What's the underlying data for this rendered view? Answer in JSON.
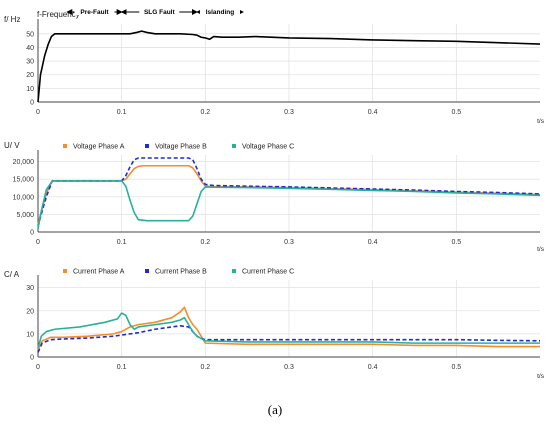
{
  "caption": "(a)",
  "chart_data": [
    {
      "type": "line",
      "ylabel": "f/ Hz",
      "xlabel": "t/s",
      "xlim": [
        0,
        0.6
      ],
      "ylim": [
        0,
        55
      ],
      "x_ticks": [
        "0",
        "0.1",
        "0.2",
        "0.3",
        "0.4",
        "0.5"
      ],
      "y_ticks": [
        "0",
        "10",
        "20",
        "30",
        "40",
        "50"
      ],
      "grid": true,
      "legend": "top-left",
      "series": [
        {
          "name": "f-Frequency",
          "color": "#000000",
          "x": [
            0,
            0.003,
            0.008,
            0.012,
            0.016,
            0.02,
            0.05,
            0.08,
            0.1,
            0.11,
            0.118,
            0.124,
            0.13,
            0.14,
            0.15,
            0.17,
            0.185,
            0.19,
            0.195,
            0.2,
            0.205,
            0.21,
            0.22,
            0.24,
            0.26,
            0.3,
            0.35,
            0.4,
            0.45,
            0.5,
            0.55,
            0.6
          ],
          "values": [
            0,
            20,
            34,
            42,
            48,
            50,
            50,
            50,
            50,
            50,
            51,
            52,
            51,
            50,
            50,
            50,
            49.5,
            49,
            47.5,
            47,
            46,
            48,
            47.5,
            47.5,
            48,
            47,
            46.5,
            45.5,
            45,
            44.5,
            43.5,
            42.5
          ]
        }
      ],
      "annotations": [
        {
          "text": "Pre-Fault",
          "x_start": 0.035,
          "x_end": 0.1
        },
        {
          "text": "SLG Fault",
          "x_start": 0.1,
          "x_end": 0.19
        },
        {
          "text": "Islanding",
          "x_start": 0.19,
          "x_end": 0.245
        }
      ]
    },
    {
      "type": "line",
      "ylabel": "U/ V",
      "xlabel": "t/s",
      "xlim": [
        0,
        0.6
      ],
      "ylim": [
        0,
        21000
      ],
      "x_ticks": [
        "0",
        "0.1",
        "0.2",
        "0.3",
        "0.4",
        "0.5"
      ],
      "y_ticks": [
        "0",
        "5,000",
        "10,000",
        "15,000",
        "20,000"
      ],
      "grid": true,
      "legend": "top",
      "series": [
        {
          "name": "Voltage Phase A",
          "color": "#f28e2b",
          "dash": "solid",
          "x": [
            0,
            0.003,
            0.01,
            0.017,
            0.1,
            0.105,
            0.11,
            0.115,
            0.12,
            0.125,
            0.18,
            0.185,
            0.19,
            0.195,
            0.2,
            0.21,
            0.25,
            0.3,
            0.35,
            0.4,
            0.45,
            0.5,
            0.55,
            0.6
          ],
          "values": [
            2000,
            5000,
            11000,
            14500,
            14500,
            15000,
            16500,
            18000,
            18600,
            18800,
            18800,
            18200,
            16500,
            14500,
            13000,
            12900,
            12800,
            12600,
            12300,
            12000,
            11700,
            11300,
            11000,
            10600
          ]
        },
        {
          "name": "Voltage Phase B",
          "color": "#1f2bd4",
          "dash": "dashed",
          "x": [
            0,
            0.005,
            0.01,
            0.017,
            0.1,
            0.105,
            0.11,
            0.115,
            0.12,
            0.125,
            0.18,
            0.185,
            0.19,
            0.195,
            0.2,
            0.21,
            0.25,
            0.3,
            0.35,
            0.4,
            0.45,
            0.5,
            0.55,
            0.6
          ],
          "values": [
            1500,
            6000,
            10000,
            14500,
            14500,
            16000,
            18500,
            20500,
            21000,
            21000,
            21000,
            20500,
            18000,
            15000,
            13500,
            13200,
            13000,
            12800,
            12500,
            12200,
            11900,
            11500,
            11200,
            10800
          ]
        },
        {
          "name": "Voltage Phase C",
          "color": "#2ab09a",
          "dash": "solid",
          "x": [
            0,
            0.004,
            0.01,
            0.017,
            0.1,
            0.105,
            0.11,
            0.115,
            0.12,
            0.13,
            0.18,
            0.185,
            0.19,
            0.195,
            0.2,
            0.21,
            0.25,
            0.3,
            0.35,
            0.4,
            0.45,
            0.5,
            0.55,
            0.6
          ],
          "values": [
            1000,
            6000,
            12000,
            14500,
            14500,
            13000,
            9000,
            5500,
            3500,
            3200,
            3200,
            4500,
            8000,
            11500,
            12800,
            12700,
            12600,
            12400,
            12100,
            11800,
            11500,
            11100,
            10800,
            10400
          ]
        }
      ]
    },
    {
      "type": "line",
      "ylabel": "C/ A",
      "xlabel": "t/s",
      "xlim": [
        0,
        0.6
      ],
      "ylim": [
        0,
        32
      ],
      "x_ticks": [
        "0",
        "0.1",
        "0.2",
        "0.3",
        "0.4",
        "0.5"
      ],
      "y_ticks": [
        "0",
        "10",
        "20",
        "30"
      ],
      "grid": true,
      "legend": "top",
      "series": [
        {
          "name": "Current Phase A",
          "color": "#f28e2b",
          "dash": "solid",
          "x": [
            0,
            0.005,
            0.015,
            0.03,
            0.06,
            0.09,
            0.1,
            0.11,
            0.12,
            0.14,
            0.16,
            0.17,
            0.175,
            0.18,
            0.185,
            0.19,
            0.195,
            0.2,
            0.25,
            0.3,
            0.35,
            0.4,
            0.45,
            0.5,
            0.55,
            0.6
          ],
          "values": [
            3,
            7,
            8.5,
            8.5,
            9,
            10,
            11,
            13,
            14,
            15,
            17,
            19.5,
            21.5,
            17,
            14,
            12,
            9,
            6,
            5.5,
            5.5,
            5.5,
            5.5,
            5,
            5,
            4.5,
            4.5
          ]
        },
        {
          "name": "Current Phase B",
          "color": "#1f2bd4",
          "dash": "dashed",
          "x": [
            0,
            0.005,
            0.015,
            0.03,
            0.06,
            0.09,
            0.1,
            0.11,
            0.12,
            0.14,
            0.16,
            0.17,
            0.18,
            0.185,
            0.19,
            0.195,
            0.2,
            0.25,
            0.3,
            0.35,
            0.4,
            0.45,
            0.5,
            0.55,
            0.6
          ],
          "values": [
            2,
            6,
            7.5,
            7.8,
            8.2,
            9,
            9.5,
            10,
            10.5,
            12,
            13,
            13.5,
            13,
            11,
            9,
            8,
            7.5,
            7.5,
            7.5,
            7.5,
            7.5,
            7.5,
            7.5,
            7.2,
            7
          ]
        },
        {
          "name": "Current Phase C",
          "color": "#2ab09a",
          "dash": "solid",
          "x": [
            0,
            0.004,
            0.01,
            0.02,
            0.05,
            0.08,
            0.095,
            0.1,
            0.105,
            0.11,
            0.115,
            0.12,
            0.14,
            0.16,
            0.17,
            0.175,
            0.18,
            0.185,
            0.19,
            0.2,
            0.25,
            0.3,
            0.35,
            0.4,
            0.45,
            0.5,
            0.55,
            0.6
          ],
          "values": [
            4,
            9,
            11,
            12,
            13,
            15,
            16.5,
            19,
            18,
            14,
            12,
            13,
            14,
            15,
            16,
            17,
            14,
            11,
            9,
            7,
            6.5,
            6.5,
            6.5,
            6.5,
            6,
            6,
            6,
            6
          ]
        }
      ]
    }
  ]
}
